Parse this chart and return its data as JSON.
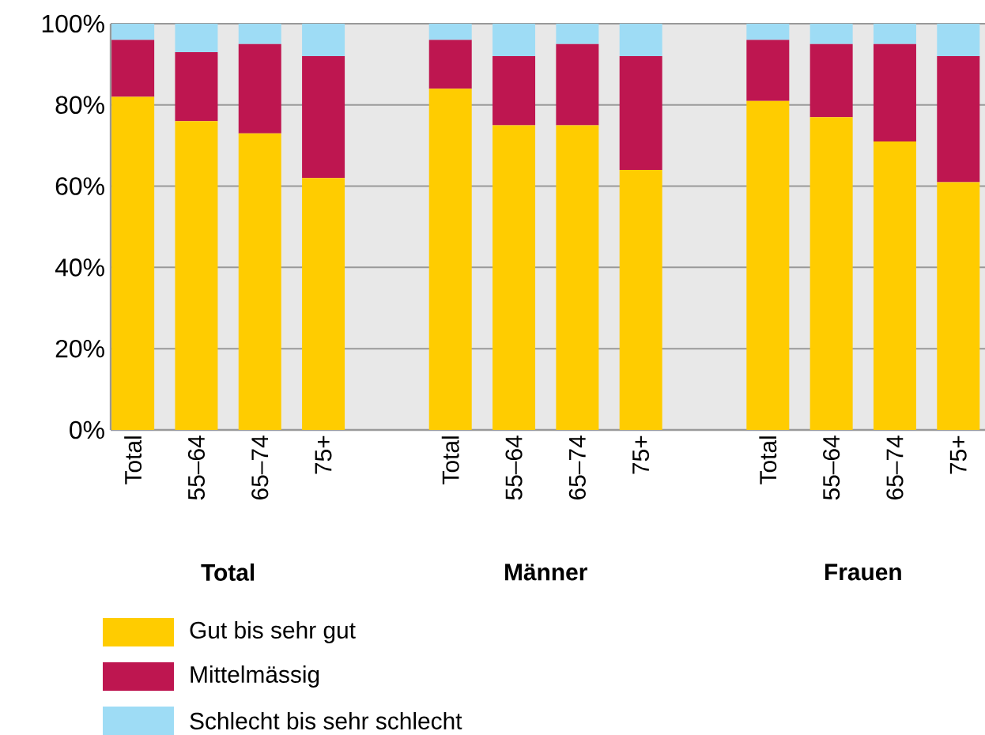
{
  "chart_data": {
    "type": "bar",
    "stacked": true,
    "categories": [
      "Total",
      "55–64",
      "65–74",
      "75+",
      null,
      "Total",
      "55–64",
      "65–74",
      "75+",
      null,
      "Total",
      "55–64",
      "65–74",
      "75+"
    ],
    "series": [
      {
        "name": "Gut bis sehr gut",
        "color": "#ffcc00",
        "values": [
          82,
          76,
          73,
          62,
          null,
          84,
          75,
          75,
          64,
          null,
          81,
          77,
          71,
          61
        ]
      },
      {
        "name": "Mittelmässig",
        "color": "#be1650",
        "values": [
          14,
          17,
          22,
          30,
          null,
          12,
          17,
          20,
          28,
          null,
          15,
          18,
          24,
          31
        ]
      },
      {
        "name": "Schlecht bis sehr schlecht",
        "color": "#9edcf5",
        "values": [
          4,
          7,
          5,
          8,
          null,
          4,
          8,
          5,
          8,
          null,
          4,
          5,
          5,
          8
        ]
      }
    ],
    "ylim": [
      0,
      100
    ],
    "yticks": [
      {
        "value": 0,
        "label": "0%"
      },
      {
        "value": 20,
        "label": "20%"
      },
      {
        "value": 40,
        "label": "40%"
      },
      {
        "value": 60,
        "label": "60%"
      },
      {
        "value": 80,
        "label": "80%"
      },
      {
        "value": 100,
        "label": "100%"
      }
    ],
    "grid": "y",
    "legend": "bottom",
    "annotations": [
      "Total",
      "Männer",
      "Frauen"
    ]
  }
}
